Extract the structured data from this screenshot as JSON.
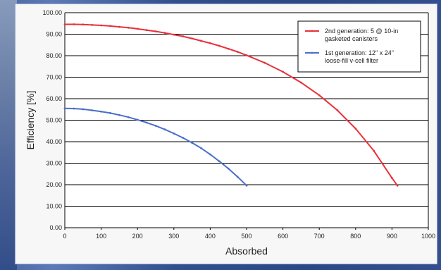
{
  "chart_data": {
    "type": "line",
    "title": "",
    "xlabel": "Absorbed",
    "ylabel": "Efficiency [%]",
    "xlim": [
      0,
      1000
    ],
    "ylim": [
      0,
      100
    ],
    "x_ticks": [
      "0",
      "100",
      "200",
      "300",
      "400",
      "500",
      "600",
      "700",
      "800",
      "900",
      "1000"
    ],
    "y_ticks": [
      "0.00",
      "10.00",
      "20.00",
      "30.00",
      "40.00",
      "50.00",
      "60.00",
      "70.00",
      "80.00",
      "90.00",
      "100.00"
    ],
    "grid": "horizontal",
    "legend_position": "top-right",
    "series": [
      {
        "name": "2nd generation: 5 @ 10-in gasketed canisters",
        "color": "#e8303a",
        "x": [
          0,
          25,
          50,
          75,
          100,
          125,
          150,
          175,
          200,
          225,
          250,
          275,
          300,
          325,
          350,
          375,
          400,
          425,
          450,
          475,
          500,
          550,
          600,
          650,
          700,
          750,
          800,
          850,
          900,
          915
        ],
        "y": [
          94.6,
          94.6,
          94.5,
          94.3,
          94.1,
          93.8,
          93.4,
          93.0,
          92.5,
          91.9,
          91.3,
          90.6,
          89.8,
          89.0,
          88.0,
          86.9,
          85.8,
          84.6,
          83.2,
          81.8,
          80.2,
          76.7,
          72.5,
          67.5,
          61.6,
          54.6,
          46.1,
          35.8,
          23.1,
          19.6
        ]
      },
      {
        "name": "1st generation: 12\" x 24\" loose-fill v-cell filter",
        "color": "#4a6fc9",
        "x": [
          0,
          25,
          50,
          75,
          100,
          125,
          150,
          175,
          200,
          225,
          250,
          275,
          300,
          325,
          350,
          375,
          400,
          425,
          450,
          475,
          500
        ],
        "y": [
          55.5,
          55.4,
          55.1,
          54.6,
          54.0,
          53.3,
          52.4,
          51.4,
          50.2,
          48.9,
          47.4,
          45.7,
          43.8,
          41.8,
          39.5,
          37.0,
          34.1,
          30.9,
          27.5,
          23.7,
          19.6
        ]
      }
    ]
  }
}
